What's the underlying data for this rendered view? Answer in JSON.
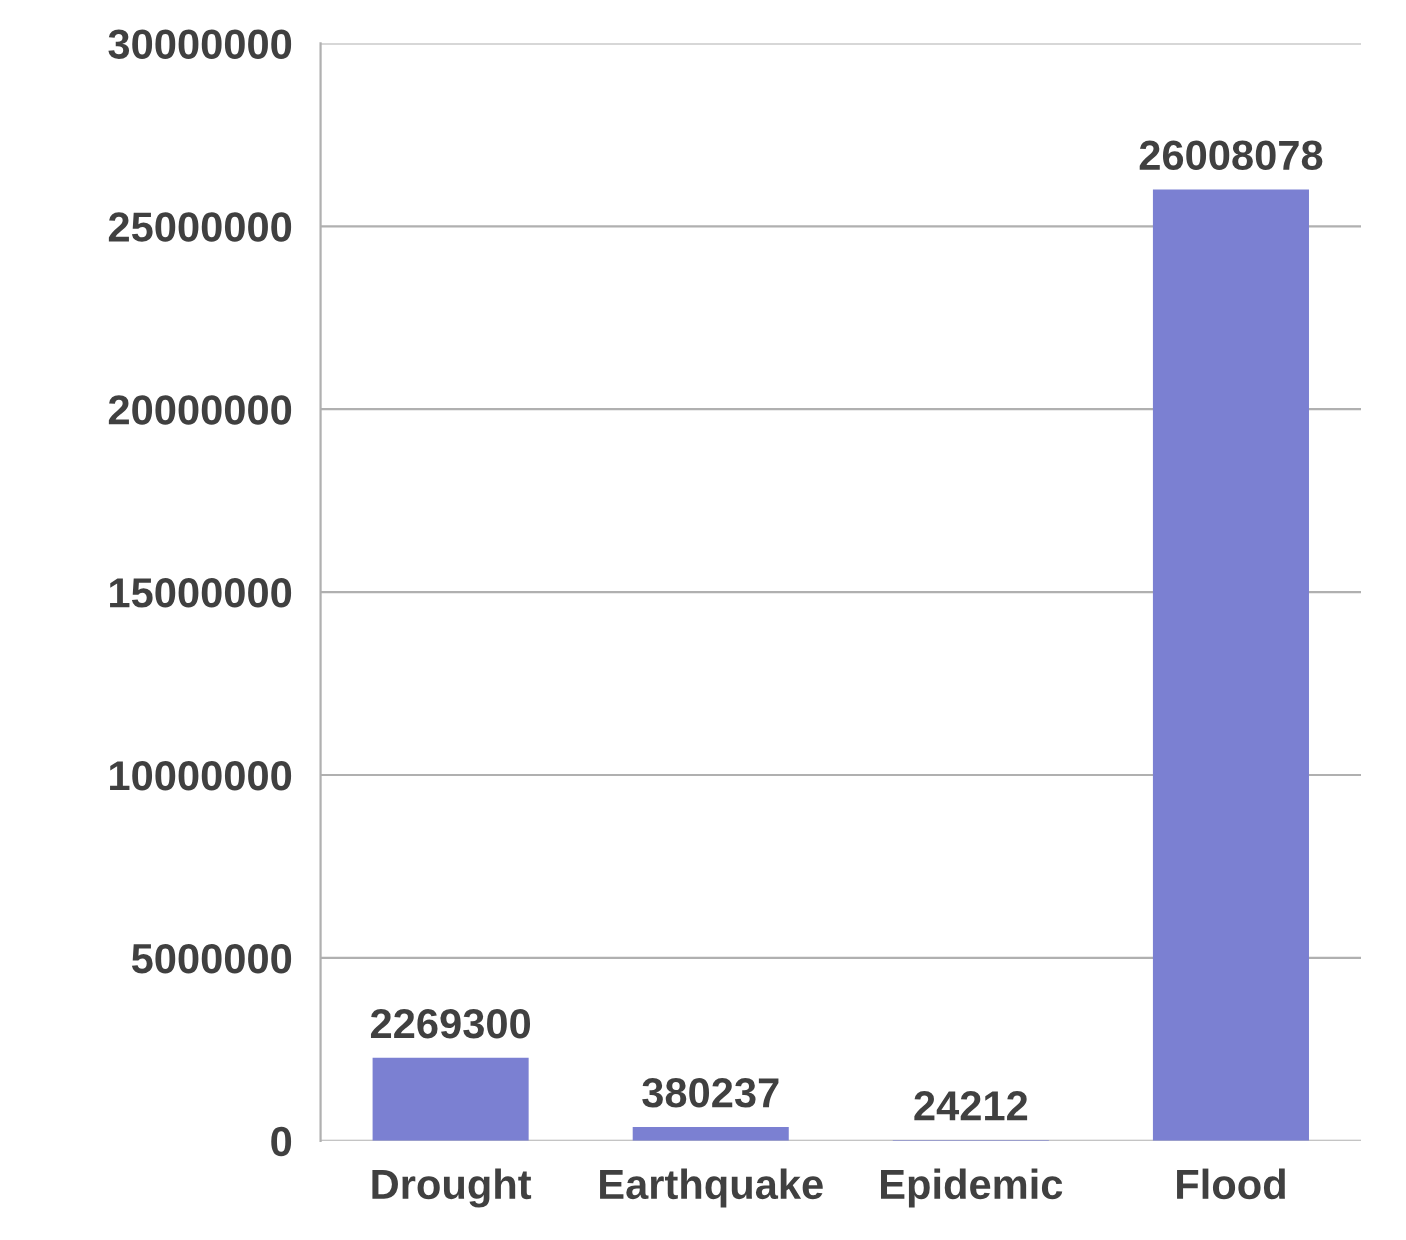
{
  "chart_data": {
    "type": "bar",
    "categories": [
      "Drought",
      "Earthquake",
      "Epidemic",
      "Flood"
    ],
    "values": [
      2269300,
      380237,
      24212,
      26008078
    ],
    "color": "#7b80d2",
    "ylim": [
      0,
      30000000
    ],
    "yticks": [
      0,
      5000000,
      10000000,
      15000000,
      20000000,
      25000000,
      30000000
    ],
    "grid": "y",
    "data_labels": true
  }
}
